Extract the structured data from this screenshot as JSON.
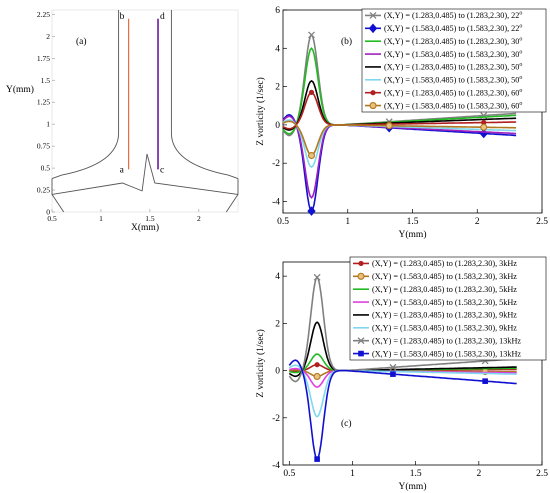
{
  "chart_data": [
    {
      "panel": "(a)",
      "type": "diagram",
      "xlabel": "X(mm)",
      "ylabel": "Y(mm)",
      "xlim": [
        0.5,
        2.4
      ],
      "ylim": [
        0,
        2.3
      ],
      "xticks": [
        "0.5",
        "1",
        "1.5",
        "2"
      ],
      "yticks": [
        "0",
        "0.25",
        "0.5",
        "0.75",
        "1",
        "1.25",
        "1.5",
        "1.75",
        "2",
        "2.25"
      ],
      "point_labels": [
        "a",
        "b",
        "c",
        "d"
      ],
      "outline_color": "#555555",
      "line_ab_color": "#e06030",
      "line_cd_color": "#6a1aa0"
    },
    {
      "panel": "(b)",
      "type": "line",
      "xlabel": "Y(mm)",
      "ylabel": "Z vorticity (1/sec)",
      "xlim": [
        0.5,
        2.5
      ],
      "ylim": [
        -4.6,
        6
      ],
      "xticks": [
        "0.5",
        "1",
        "1.5",
        "2",
        "2.5"
      ],
      "yticks": [
        "-4",
        "-2",
        "0",
        "2",
        "4",
        "6"
      ],
      "series": [
        {
          "name": "(X,Y) = (1.283,0.485) to (1.283,2.30), 22",
          "deg": "o",
          "color": "#808080",
          "marker": "x",
          "peak": 4.7,
          "tail_end": 0.6
        },
        {
          "name": "(X,Y) = (1.583,0.485) to (1.583,2.30), 22",
          "deg": "o",
          "color": "#1010d0",
          "marker": "diamond",
          "peak": -4.5,
          "tail_end": -0.55
        },
        {
          "name": "(X,Y) = (1.283,0.485) to (1.283,2.30), 30",
          "deg": "o",
          "color": "#22bb22",
          "marker": "none",
          "peak": 4.0,
          "tail_end": 0.5
        },
        {
          "name": "(X,Y) = (1.583,0.485) to (1.583,2.30), 30",
          "deg": "o",
          "color": "#a020c0",
          "marker": "none",
          "peak": -3.8,
          "tail_end": -0.45
        },
        {
          "name": "(X,Y) = (1.283,0.485) to (1.283,2.30), 50",
          "deg": "o",
          "color": "#000000",
          "marker": "none",
          "peak": 2.3,
          "tail_end": 0.35
        },
        {
          "name": "(X,Y) = (1.583,0.485) to (1.583,2.30), 50",
          "deg": "o",
          "color": "#7fd8f0",
          "marker": "none",
          "peak": -2.2,
          "tail_end": -0.3
        },
        {
          "name": "(X,Y) = (1.283,0.485) to (1.283,2.30), 60",
          "deg": "o",
          "color": "#b02020",
          "marker": "dot",
          "peak": 1.7,
          "tail_end": 0.15
        },
        {
          "name": "(X,Y) = (1.583,0.485) to (1.583,2.30), 60",
          "deg": "o",
          "color": "#b07820",
          "marker": "circle",
          "peak": -1.6,
          "tail_end": -0.15
        }
      ]
    },
    {
      "panel": "(c)",
      "type": "line",
      "xlabel": "Y(mm)",
      "ylabel": "Z vorticity (1/sec)",
      "xlim": [
        0.45,
        2.5
      ],
      "ylim": [
        -4,
        4.6
      ],
      "xticks": [
        "0.5",
        "1",
        "1.5",
        "2",
        "2.5"
      ],
      "yticks": [
        "-4",
        "-2",
        "0",
        "2",
        "4"
      ],
      "series": [
        {
          "name": "(X,Y) = (1.283,0.485) to (1.283,2.30), 3kHz",
          "color": "#b02020",
          "marker": "dot",
          "peak": 0.25,
          "tail_end": 0.05
        },
        {
          "name": "(X,Y) = (1.583,0.485) to (1.583,2.30), 3kHz",
          "color": "#b07820",
          "marker": "circle",
          "peak": -0.25,
          "tail_end": -0.05
        },
        {
          "name": "(X,Y) = (1.283,0.485) to (1.283,2.30), 5kHz",
          "color": "#22bb22",
          "marker": "none",
          "peak": 0.7,
          "tail_end": 0.1
        },
        {
          "name": "(X,Y) = (1.583,0.485) to (1.583,2.30), 5kHz",
          "color": "#e040e0",
          "marker": "none",
          "peak": -0.7,
          "tail_end": -0.1
        },
        {
          "name": "(X,Y) = (1.283,0.485) to (1.283,2.30), 9kHz",
          "color": "#000000",
          "marker": "none",
          "peak": 2.05,
          "tail_end": 0.15
        },
        {
          "name": "(X,Y) = (1.583,0.485) to (1.583,2.30), 9kHz",
          "color": "#7fd8f0",
          "marker": "none",
          "peak": -1.95,
          "tail_end": -0.15
        },
        {
          "name": "(X,Y) = (1.283,0.485) to (1.283,2.30), 13kHz",
          "color": "#808080",
          "marker": "x",
          "peak": 3.95,
          "tail_end": 0.5
        },
        {
          "name": "(X,Y) = (1.583,0.485) to (1.583,2.30), 13kHz",
          "color": "#1010d0",
          "marker": "square",
          "peak": -3.75,
          "tail_end": -0.55
        }
      ]
    }
  ]
}
